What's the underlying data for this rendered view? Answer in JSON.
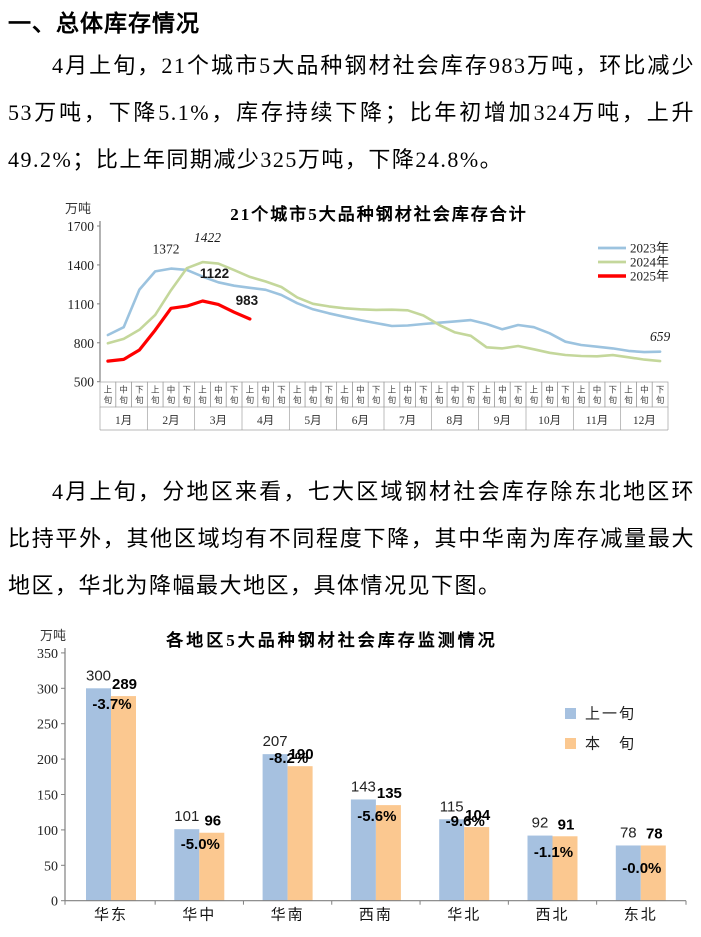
{
  "page": {
    "heading": "一、总体库存情况",
    "paragraph1": "4月上旬，21个城市5大品种钢材社会库存983万吨，环比减少53万吨，下降5.1%，库存持续下降；比年初增加324万吨，上升49.2%；比上年同期减少325万吨，下降24.8%。",
    "paragraph2": "4月上旬，分地区来看，七大区域钢材社会库存除东北地区环比持平外，其他区域均有不同程度下降，其中华南为库存减量最大地区，华北为降幅最大地区，具体情况见下图。"
  },
  "chart_data": [
    {
      "type": "line",
      "title": "21个城市5大品种钢材社会库存合计",
      "ylabel": "万吨",
      "ylim": [
        500,
        1700
      ],
      "yticks": [
        500,
        800,
        1100,
        1400,
        1700
      ],
      "months": [
        "1月",
        "2月",
        "3月",
        "4月",
        "5月",
        "6月",
        "7月",
        "8月",
        "9月",
        "10月",
        "11月",
        "12月"
      ],
      "periods": [
        "上旬",
        "中旬",
        "下旬"
      ],
      "grid": false,
      "legend_position": "top-right",
      "series": [
        {
          "name": "2023年",
          "color": "#9CC3DF",
          "values": [
            860,
            920,
            1210,
            1350,
            1372,
            1362,
            1310,
            1266,
            1240,
            1224,
            1208,
            1168,
            1105,
            1058,
            1027,
            1000,
            975,
            952,
            929,
            933,
            945,
            955,
            965,
            975,
            945,
            904,
            937,
            920,
            873,
            808,
            783,
            770,
            757,
            737,
            728,
            731
          ]
        },
        {
          "name": "2024年",
          "color": "#C4D79B",
          "values": [
            796,
            830,
            900,
            1015,
            1205,
            1375,
            1422,
            1410,
            1360,
            1308,
            1272,
            1230,
            1150,
            1100,
            1080,
            1066,
            1058,
            1053,
            1055,
            1050,
            1010,
            938,
            880,
            854,
            765,
            757,
            775,
            750,
            723,
            706,
            698,
            696,
            705,
            688,
            670,
            659
          ]
        },
        {
          "name": "2025年",
          "color": "#FF0000",
          "values": [
            659,
            672,
            744,
            898,
            1066,
            1083,
            1122,
            1096,
            1036,
            983
          ]
        }
      ],
      "annotations": [
        {
          "text": "1372",
          "series": "2023年",
          "point": 4,
          "style": "plain"
        },
        {
          "text": "1422",
          "series": "2024年",
          "point": 6,
          "style": "italic"
        },
        {
          "text": "1122",
          "series": "2025年",
          "point": 6,
          "style": "bold"
        },
        {
          "text": "983",
          "series": "2025年",
          "point": 9,
          "style": "bold"
        },
        {
          "text": "659",
          "series": "2024年",
          "point": 35,
          "style": "italic"
        }
      ]
    },
    {
      "type": "bar",
      "title": "各地区5大品种钢材社会库存监测情况",
      "ylabel": "万吨",
      "ylim": [
        0,
        350
      ],
      "yticks": [
        0,
        50,
        100,
        150,
        200,
        250,
        300,
        350
      ],
      "grid": false,
      "legend_position": "right",
      "categories": [
        "华东",
        "华中",
        "华南",
        "西南",
        "华北",
        "西北",
        "东北"
      ],
      "series": [
        {
          "name": "上一旬",
          "color": "#A6C1E0",
          "values": [
            300,
            101,
            207,
            143,
            115,
            92,
            78
          ]
        },
        {
          "name": "本　旬",
          "color": "#FBC890",
          "values": [
            289,
            96,
            190,
            135,
            104,
            91,
            78
          ]
        }
      ],
      "pct_labels": [
        "-3.7%",
        "-5.0%",
        "-8.2%",
        "-5.6%",
        "-9.6%",
        "-1.1%",
        "-0.0%"
      ]
    }
  ]
}
